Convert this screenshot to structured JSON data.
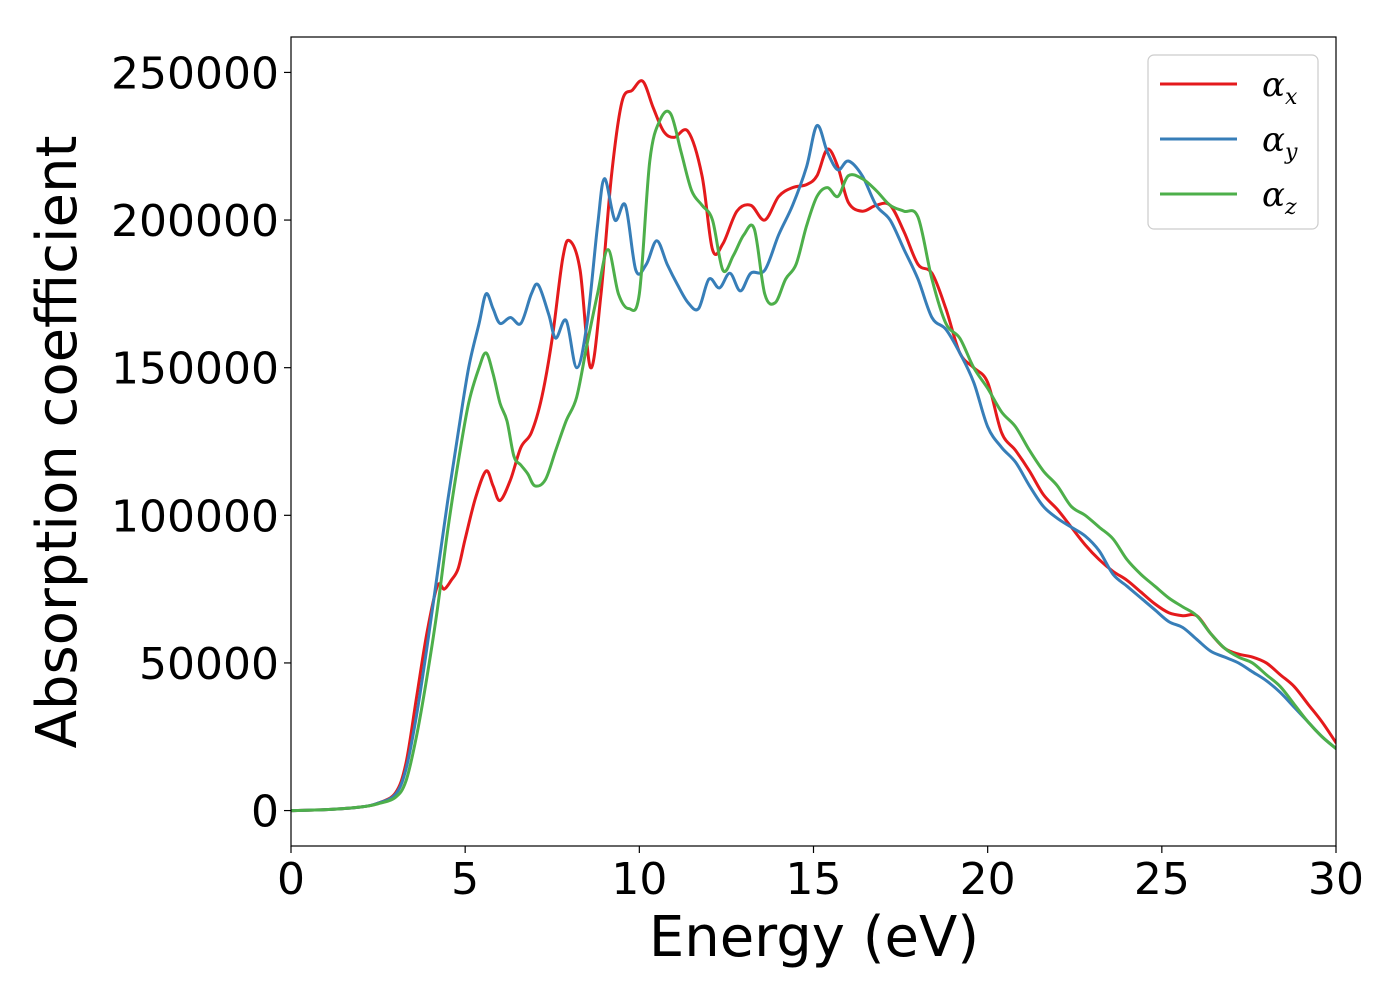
{
  "chart_data": {
    "type": "line",
    "title": "",
    "xlabel": "Energy (eV)",
    "ylabel": "Absorption coefficient",
    "xlim": [
      0,
      30
    ],
    "ylim": [
      -12000,
      262000
    ],
    "xticks": [
      0,
      5,
      10,
      15,
      20,
      25,
      30
    ],
    "yticks": [
      0,
      50000,
      100000,
      150000,
      200000,
      250000
    ],
    "grid": false,
    "legend_position": "top-right",
    "series": [
      {
        "name": "α_x",
        "symbol": "α",
        "subscript": "x",
        "color": "#e41a1c",
        "x": [
          0,
          1,
          2,
          2.5,
          3,
          3.3,
          3.6,
          3.9,
          4.2,
          4.4,
          4.6,
          4.8,
          5.0,
          5.3,
          5.6,
          5.8,
          6.0,
          6.3,
          6.6,
          6.9,
          7.2,
          7.5,
          7.8,
          8.0,
          8.3,
          8.6,
          8.9,
          9.2,
          9.5,
          9.8,
          10.1,
          10.4,
          10.7,
          11.0,
          11.4,
          11.8,
          12.1,
          12.4,
          12.8,
          13.2,
          13.6,
          14.0,
          14.4,
          14.8,
          15.1,
          15.4,
          15.7,
          16.0,
          16.4,
          16.8,
          17.2,
          17.6,
          18.0,
          18.4,
          18.8,
          19.2,
          19.6,
          20.0,
          20.4,
          20.8,
          21.2,
          21.6,
          22.0,
          22.4,
          22.8,
          23.2,
          23.6,
          24.0,
          24.4,
          24.8,
          25.2,
          25.6,
          26.0,
          26.4,
          26.8,
          27.2,
          27.6,
          28.0,
          28.4,
          28.8,
          29.2,
          29.6,
          30.0
        ],
        "y": [
          0,
          300,
          1200,
          2500,
          6000,
          16000,
          38000,
          60000,
          76000,
          75000,
          78000,
          82000,
          92000,
          106000,
          115000,
          110000,
          105000,
          112000,
          123000,
          128000,
          140000,
          160000,
          187000,
          193000,
          183000,
          150000,
          175000,
          215000,
          240000,
          244000,
          247000,
          238000,
          230000,
          228000,
          230000,
          215000,
          190000,
          192000,
          203000,
          205000,
          200000,
          208000,
          211000,
          212000,
          215000,
          224000,
          218000,
          206000,
          203000,
          205000,
          205000,
          196000,
          185000,
          182000,
          170000,
          155000,
          150000,
          145000,
          128000,
          122000,
          115000,
          107000,
          102000,
          96000,
          90000,
          85000,
          81000,
          78000,
          74000,
          70000,
          67000,
          66000,
          66000,
          60000,
          55000,
          53000,
          52000,
          50000,
          46000,
          42000,
          36000,
          30000,
          23000
        ]
      },
      {
        "name": "α_y",
        "symbol": "α",
        "subscript": "y",
        "color": "#377eb8",
        "x": [
          0,
          1,
          2,
          2.5,
          3,
          3.3,
          3.6,
          3.9,
          4.2,
          4.5,
          4.8,
          5.1,
          5.4,
          5.6,
          5.8,
          6.0,
          6.3,
          6.6,
          6.9,
          7.1,
          7.4,
          7.6,
          7.9,
          8.2,
          8.5,
          8.8,
          9.0,
          9.3,
          9.6,
          9.9,
          10.2,
          10.5,
          10.8,
          11.1,
          11.4,
          11.7,
          12.0,
          12.3,
          12.6,
          12.9,
          13.2,
          13.6,
          14.0,
          14.4,
          14.8,
          15.1,
          15.4,
          15.7,
          16.0,
          16.4,
          16.8,
          17.2,
          17.6,
          18.0,
          18.4,
          18.8,
          19.2,
          19.6,
          20.0,
          20.4,
          20.8,
          21.2,
          21.6,
          22.0,
          22.4,
          22.8,
          23.2,
          23.6,
          24.0,
          24.4,
          24.8,
          25.2,
          25.6,
          26.0,
          26.4,
          26.8,
          27.2,
          27.6,
          28.0,
          28.4,
          28.8,
          29.2,
          29.6,
          30.0
        ],
        "y": [
          0,
          300,
          1200,
          2500,
          5500,
          14000,
          32000,
          55000,
          80000,
          105000,
          128000,
          150000,
          165000,
          175000,
          170000,
          165000,
          167000,
          165000,
          175000,
          178000,
          168000,
          160000,
          166000,
          150000,
          165000,
          198000,
          214000,
          200000,
          205000,
          183000,
          185000,
          193000,
          185000,
          178000,
          172000,
          170000,
          180000,
          177000,
          182000,
          176000,
          182000,
          183000,
          195000,
          205000,
          218000,
          232000,
          223000,
          217000,
          220000,
          215000,
          205000,
          200000,
          190000,
          180000,
          167000,
          163000,
          155000,
          145000,
          130000,
          123000,
          118000,
          110000,
          103000,
          99000,
          96000,
          93000,
          88000,
          80000,
          76000,
          72000,
          68000,
          64000,
          62000,
          58000,
          54000,
          52000,
          50000,
          47000,
          44000,
          40000,
          35000,
          30000,
          25000,
          21000
        ]
      },
      {
        "name": "α_z",
        "symbol": "α",
        "subscript": "z",
        "color": "#4daf4a",
        "x": [
          0,
          1,
          2,
          2.5,
          3,
          3.3,
          3.6,
          3.9,
          4.2,
          4.5,
          4.8,
          5.1,
          5.4,
          5.6,
          5.8,
          6.0,
          6.2,
          6.4,
          6.6,
          6.8,
          7.0,
          7.3,
          7.6,
          7.9,
          8.2,
          8.5,
          8.8,
          9.1,
          9.4,
          9.7,
          10.0,
          10.3,
          10.6,
          10.9,
          11.2,
          11.5,
          11.8,
          12.1,
          12.4,
          12.7,
          13.0,
          13.3,
          13.6,
          13.9,
          14.2,
          14.5,
          14.8,
          15.1,
          15.4,
          15.7,
          16.0,
          16.4,
          16.8,
          17.2,
          17.6,
          18.0,
          18.4,
          18.8,
          19.2,
          19.6,
          20.0,
          20.4,
          20.8,
          21.2,
          21.6,
          22.0,
          22.4,
          22.8,
          23.2,
          23.6,
          24.0,
          24.4,
          24.8,
          25.2,
          25.6,
          26.0,
          26.4,
          26.8,
          27.2,
          27.6,
          28.0,
          28.4,
          28.8,
          29.2,
          29.6,
          30.0
        ],
        "y": [
          0,
          300,
          1200,
          2300,
          4500,
          10000,
          25000,
          45000,
          68000,
          95000,
          118000,
          138000,
          150000,
          155000,
          148000,
          138000,
          132000,
          120000,
          117000,
          114000,
          110000,
          112000,
          122000,
          132000,
          140000,
          158000,
          175000,
          190000,
          175000,
          170000,
          175000,
          220000,
          234000,
          236000,
          223000,
          210000,
          205000,
          200000,
          183000,
          188000,
          195000,
          197000,
          175000,
          172000,
          180000,
          185000,
          198000,
          208000,
          211000,
          208000,
          215000,
          214000,
          210000,
          205000,
          203000,
          201000,
          180000,
          165000,
          160000,
          150000,
          143000,
          135000,
          130000,
          122000,
          115000,
          110000,
          103000,
          100000,
          96000,
          92000,
          85000,
          80000,
          76000,
          72000,
          69000,
          66000,
          60000,
          55000,
          52000,
          50000,
          46000,
          42000,
          36000,
          30000,
          25000,
          21000
        ]
      }
    ]
  }
}
